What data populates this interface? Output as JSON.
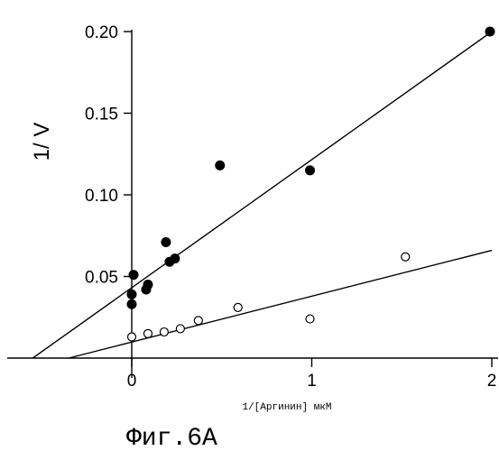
{
  "figure": {
    "caption": "Фиг.6А"
  },
  "chart_data": {
    "type": "scatter",
    "xlabel": "1/[Аргинин] мкМ",
    "ylabel": "1/ V",
    "xlim": [
      -0.7,
      2.05
    ],
    "ylim": [
      0,
      0.2
    ],
    "x_ticks": [
      0,
      1,
      2
    ],
    "x_tick_labels": [
      "0",
      "1",
      "2"
    ],
    "y_ticks": [
      0.05,
      0.1,
      0.15,
      0.2
    ],
    "y_tick_labels": [
      "0.05",
      "0.10",
      "0.15",
      "0.20"
    ],
    "grid": false,
    "legend": "none",
    "series": [
      {
        "marker": "filled-circle",
        "color": "#000000",
        "x": [
          0.0,
          0.0,
          0.01,
          0.08,
          0.09,
          0.19,
          0.21,
          0.24,
          0.49,
          0.99,
          1.99
        ],
        "y": [
          0.033,
          0.039,
          0.051,
          0.042,
          0.045,
          0.071,
          0.059,
          0.061,
          0.118,
          0.115,
          0.2
        ],
        "fit_line": {
          "x": [
            -0.55,
            2.0
          ],
          "y": [
            0.0,
            0.2
          ]
        }
      },
      {
        "marker": "open-circle",
        "color": "#000000",
        "x": [
          0.0,
          0.09,
          0.18,
          0.27,
          0.37,
          0.59,
          0.99,
          1.52
        ],
        "y": [
          0.013,
          0.015,
          0.016,
          0.018,
          0.023,
          0.031,
          0.024,
          0.062
        ],
        "fit_line": {
          "x": [
            -0.35,
            2.0
          ],
          "y": [
            0.0,
            0.066
          ]
        }
      }
    ]
  }
}
